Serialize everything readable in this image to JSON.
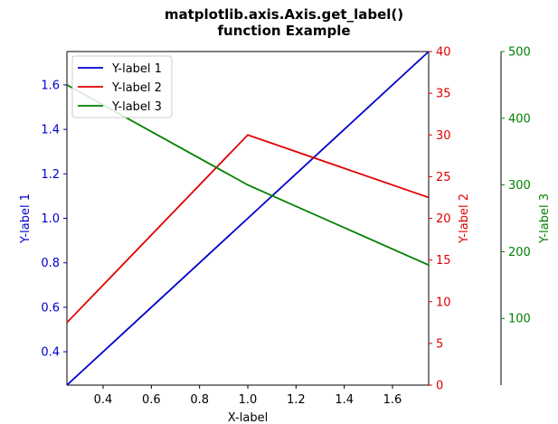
{
  "chart_data": {
    "type": "line",
    "title_line1": "matplotlib.axis.Axis.get_label()",
    "title_line2": "function Example",
    "xlabel": "X-label",
    "xlim": [
      0.25,
      1.75
    ],
    "x_ticks": [
      "0.4",
      "0.6",
      "0.8",
      "1.0",
      "1.2",
      "1.4",
      "1.6"
    ],
    "grid": false,
    "legend_position": "top-left",
    "axes": [
      {
        "id": "y1",
        "label": "Y-label 1",
        "color": "#0000cc",
        "side": "left",
        "ylim": [
          0.25,
          1.75
        ],
        "ticks": [
          "0.4",
          "0.6",
          "0.8",
          "1.0",
          "1.2",
          "1.4",
          "1.6"
        ]
      },
      {
        "id": "y2",
        "label": "Y-label 2",
        "color": "#e00000",
        "side": "right",
        "ylim": [
          0,
          40
        ],
        "ticks": [
          "0",
          "5",
          "10",
          "15",
          "20",
          "25",
          "30",
          "35",
          "40"
        ]
      },
      {
        "id": "y3",
        "label": "Y-label 3",
        "color": "#008000",
        "side": "right-outer",
        "ylim": [
          0,
          500
        ],
        "ticks": [
          "100",
          "200",
          "300",
          "400",
          "500"
        ]
      }
    ],
    "series": [
      {
        "name": "Y-label 1",
        "axis": "y1",
        "color": "#0000cc",
        "x": [
          0.25,
          1.0,
          1.75
        ],
        "y": [
          0.25,
          1.0,
          1.75
        ]
      },
      {
        "name": "Y-label 2",
        "axis": "y2",
        "color": "#e00000",
        "x": [
          0.25,
          1.0,
          1.75
        ],
        "y": [
          7.5,
          30,
          22.5
        ]
      },
      {
        "name": "Y-label 3",
        "axis": "y3",
        "color": "#008000",
        "x": [
          0.25,
          1.0,
          1.75
        ],
        "y": [
          450,
          300,
          180
        ]
      }
    ]
  }
}
